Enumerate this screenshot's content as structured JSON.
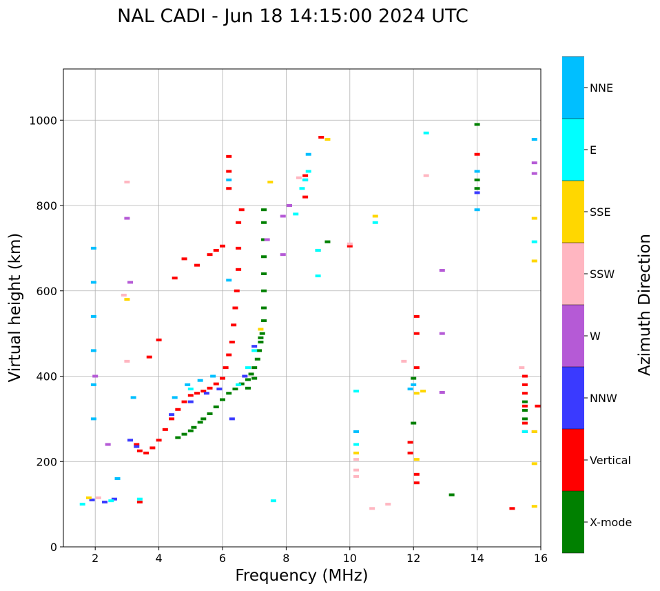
{
  "chart_data": {
    "type": "scatter",
    "title": "NAL CADI - Jun 18 14:15:00 2024 UTC",
    "xlabel": "Frequency (MHz)",
    "ylabel": "Virtual height (km)",
    "xlim": [
      1,
      16
    ],
    "ylim": [
      0,
      1120
    ],
    "xticks": [
      2,
      4,
      6,
      8,
      10,
      12,
      14,
      16
    ],
    "yticks": [
      0,
      200,
      400,
      600,
      800,
      1000
    ],
    "grid": true,
    "colorbar": {
      "label": "Azimuth Direction",
      "entries": [
        {
          "name": "X-mode",
          "color": "#008000"
        },
        {
          "name": "Vertical",
          "color": "#ff0000"
        },
        {
          "name": "NNW",
          "color": "#3a3aff"
        },
        {
          "name": "W",
          "color": "#b55ad6"
        },
        {
          "name": "SSW",
          "color": "#ffb6c1"
        },
        {
          "name": "SSE",
          "color": "#ffd700"
        },
        {
          "name": "E",
          "color": "#00ffff"
        },
        {
          "name": "NNE",
          "color": "#00bfff"
        }
      ]
    },
    "series": [
      {
        "name": "X-mode",
        "points": [
          [
            4.6,
            256
          ],
          [
            4.8,
            264
          ],
          [
            5.0,
            272
          ],
          [
            5.1,
            280
          ],
          [
            5.3,
            292
          ],
          [
            5.4,
            300
          ],
          [
            5.6,
            312
          ],
          [
            5.8,
            328
          ],
          [
            6.0,
            345
          ],
          [
            6.2,
            360
          ],
          [
            6.4,
            370
          ],
          [
            6.6,
            382
          ],
          [
            6.8,
            392
          ],
          [
            6.9,
            405
          ],
          [
            7.0,
            420
          ],
          [
            7.1,
            440
          ],
          [
            7.15,
            460
          ],
          [
            7.2,
            480
          ],
          [
            7.25,
            500
          ],
          [
            7.3,
            530
          ],
          [
            7.3,
            560
          ],
          [
            7.3,
            600
          ],
          [
            7.3,
            640
          ],
          [
            7.3,
            680
          ],
          [
            7.3,
            720
          ],
          [
            7.3,
            760
          ],
          [
            7.3,
            790
          ],
          [
            6.8,
            372
          ],
          [
            7.0,
            395
          ],
          [
            7.2,
            490
          ],
          [
            9.0,
            695
          ],
          [
            9.3,
            715
          ],
          [
            12.0,
            290
          ],
          [
            12.0,
            395
          ],
          [
            13.2,
            122
          ],
          [
            14.0,
            840
          ],
          [
            14.0,
            860
          ],
          [
            14.0,
            990
          ],
          [
            15.5,
            300
          ],
          [
            15.5,
            320
          ],
          [
            15.5,
            340
          ]
        ]
      },
      {
        "name": "Vertical",
        "points": [
          [
            3.3,
            240
          ],
          [
            3.4,
            225
          ],
          [
            3.6,
            220
          ],
          [
            3.8,
            232
          ],
          [
            4.0,
            250
          ],
          [
            4.2,
            275
          ],
          [
            4.4,
            300
          ],
          [
            4.6,
            322
          ],
          [
            4.8,
            340
          ],
          [
            5.0,
            355
          ],
          [
            5.2,
            360
          ],
          [
            5.4,
            365
          ],
          [
            5.6,
            372
          ],
          [
            5.8,
            382
          ],
          [
            6.0,
            395
          ],
          [
            6.1,
            420
          ],
          [
            6.2,
            450
          ],
          [
            6.3,
            480
          ],
          [
            6.35,
            520
          ],
          [
            6.4,
            560
          ],
          [
            6.45,
            600
          ],
          [
            6.5,
            650
          ],
          [
            6.5,
            700
          ],
          [
            6.5,
            760
          ],
          [
            6.6,
            790
          ],
          [
            6.2,
            840
          ],
          [
            6.2,
            880
          ],
          [
            6.2,
            915
          ],
          [
            3.4,
            105
          ],
          [
            3.7,
            445
          ],
          [
            4.0,
            485
          ],
          [
            4.5,
            630
          ],
          [
            4.8,
            675
          ],
          [
            5.2,
            660
          ],
          [
            5.6,
            685
          ],
          [
            5.8,
            695
          ],
          [
            6.0,
            705
          ],
          [
            8.6,
            820
          ],
          [
            8.6,
            870
          ],
          [
            9.1,
            960
          ],
          [
            10.0,
            705
          ],
          [
            12.1,
            150
          ],
          [
            12.1,
            170
          ],
          [
            12.1,
            420
          ],
          [
            12.1,
            500
          ],
          [
            12.1,
            540
          ],
          [
            14.0,
            920
          ],
          [
            15.1,
            90
          ],
          [
            15.5,
            270
          ],
          [
            15.5,
            290
          ],
          [
            15.5,
            330
          ],
          [
            15.5,
            360
          ],
          [
            15.5,
            380
          ],
          [
            15.5,
            400
          ],
          [
            15.9,
            330
          ],
          [
            11.9,
            220
          ],
          [
            11.9,
            245
          ]
        ]
      },
      {
        "name": "NNW",
        "points": [
          [
            1.9,
            110
          ],
          [
            2.3,
            105
          ],
          [
            2.6,
            112
          ],
          [
            3.1,
            250
          ],
          [
            3.3,
            235
          ],
          [
            4.4,
            310
          ],
          [
            5.0,
            340
          ],
          [
            5.5,
            360
          ],
          [
            5.9,
            370
          ],
          [
            6.3,
            300
          ],
          [
            6.7,
            400
          ],
          [
            7.0,
            470
          ],
          [
            8.6,
            860
          ],
          [
            14.0,
            830
          ],
          [
            15.5,
            270
          ]
        ]
      },
      {
        "name": "W",
        "points": [
          [
            2.0,
            400
          ],
          [
            3.0,
            770
          ],
          [
            3.1,
            620
          ],
          [
            7.4,
            720
          ],
          [
            7.9,
            685
          ],
          [
            7.9,
            775
          ],
          [
            8.1,
            800
          ],
          [
            12.9,
            648
          ],
          [
            12.9,
            500
          ],
          [
            12.9,
            362
          ],
          [
            15.8,
            900
          ],
          [
            15.8,
            875
          ],
          [
            15.8,
            270
          ],
          [
            2.4,
            240
          ]
        ]
      },
      {
        "name": "SSW",
        "points": [
          [
            2.1,
            115
          ],
          [
            3.0,
            855
          ],
          [
            3.0,
            435
          ],
          [
            2.9,
            590
          ],
          [
            8.4,
            865
          ],
          [
            10.0,
            710
          ],
          [
            10.2,
            165
          ],
          [
            10.2,
            180
          ],
          [
            10.2,
            205
          ],
          [
            10.7,
            90
          ],
          [
            11.2,
            100
          ],
          [
            11.7,
            435
          ],
          [
            12.4,
            870
          ],
          [
            15.4,
            420
          ]
        ]
      },
      {
        "name": "SSE",
        "points": [
          [
            1.8,
            115
          ],
          [
            3.0,
            580
          ],
          [
            7.2,
            510
          ],
          [
            7.5,
            855
          ],
          [
            9.3,
            955
          ],
          [
            10.8,
            775
          ],
          [
            12.1,
            360
          ],
          [
            12.3,
            365
          ],
          [
            12.1,
            205
          ],
          [
            15.8,
            95
          ],
          [
            15.8,
            195
          ],
          [
            15.8,
            270
          ],
          [
            15.8,
            670
          ],
          [
            15.8,
            770
          ],
          [
            10.2,
            220
          ]
        ]
      },
      {
        "name": "E",
        "points": [
          [
            1.6,
            100
          ],
          [
            2.5,
            108
          ],
          [
            3.4,
            112
          ],
          [
            5.0,
            370
          ],
          [
            6.5,
            380
          ],
          [
            6.8,
            420
          ],
          [
            7.0,
            460
          ],
          [
            7.6,
            108
          ],
          [
            8.3,
            780
          ],
          [
            8.5,
            840
          ],
          [
            8.6,
            860
          ],
          [
            8.7,
            880
          ],
          [
            9.0,
            635
          ],
          [
            9.0,
            695
          ],
          [
            10.2,
            240
          ],
          [
            10.2,
            270
          ],
          [
            10.8,
            760
          ],
          [
            12.4,
            970
          ],
          [
            15.8,
            715
          ],
          [
            15.5,
            270
          ],
          [
            10.2,
            365
          ]
        ]
      },
      {
        "name": "NNE",
        "points": [
          [
            1.95,
            300
          ],
          [
            1.95,
            380
          ],
          [
            1.95,
            460
          ],
          [
            1.95,
            540
          ],
          [
            1.95,
            620
          ],
          [
            1.95,
            700
          ],
          [
            2.7,
            160
          ],
          [
            3.2,
            350
          ],
          [
            4.5,
            350
          ],
          [
            4.9,
            380
          ],
          [
            5.3,
            390
          ],
          [
            5.7,
            400
          ],
          [
            6.2,
            625
          ],
          [
            6.2,
            860
          ],
          [
            8.7,
            920
          ],
          [
            10.2,
            270
          ],
          [
            11.9,
            370
          ],
          [
            12.0,
            380
          ],
          [
            14.0,
            790
          ],
          [
            14.0,
            880
          ],
          [
            15.8,
            955
          ]
        ]
      }
    ]
  }
}
